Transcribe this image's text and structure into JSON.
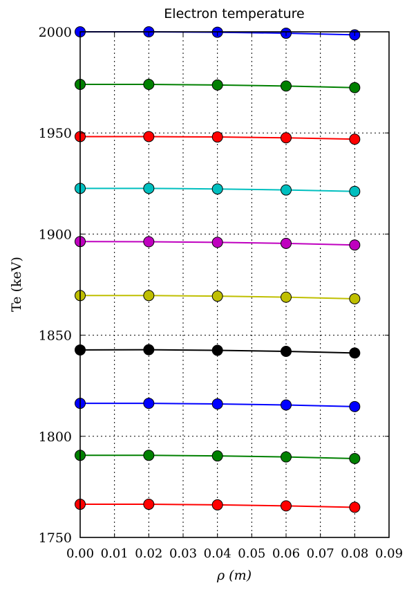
{
  "chart_data": {
    "type": "line",
    "title": "Electron temperature",
    "xlabel": "ρ (m)",
    "ylabel": "Te (keV)",
    "xlim": [
      0.0,
      0.09
    ],
    "ylim": [
      1750,
      2000
    ],
    "grid": true,
    "x_ticks": [
      "0.00",
      "0.01",
      "0.02",
      "0.03",
      "0.04",
      "0.05",
      "0.06",
      "0.07",
      "0.08",
      "0.09"
    ],
    "y_ticks": [
      "1750",
      "1800",
      "1850",
      "1900",
      "1950",
      "2000"
    ],
    "x": [
      0.0,
      0.02,
      0.04,
      0.06,
      0.08
    ],
    "series": [
      {
        "color": "#0000ff",
        "values": [
          2000.0,
          2000.0,
          1999.8,
          1999.3,
          1998.5
        ]
      },
      {
        "color": "#008000",
        "values": [
          1974.0,
          1974.0,
          1973.7,
          1973.2,
          1972.4
        ]
      },
      {
        "color": "#ff0000",
        "values": [
          1948.2,
          1948.2,
          1948.0,
          1947.6,
          1946.9
        ]
      },
      {
        "color": "#00bfbf",
        "values": [
          1922.6,
          1922.6,
          1922.3,
          1921.8,
          1921.1
        ]
      },
      {
        "color": "#bf00bf",
        "values": [
          1896.3,
          1896.2,
          1895.9,
          1895.4,
          1894.6
        ]
      },
      {
        "color": "#bfbf00",
        "values": [
          1869.6,
          1869.6,
          1869.3,
          1868.8,
          1868.0
        ]
      },
      {
        "color": "#000000",
        "values": [
          1842.7,
          1842.8,
          1842.5,
          1842.0,
          1841.2
        ]
      },
      {
        "color": "#0000ff",
        "values": [
          1816.3,
          1816.3,
          1816.0,
          1815.5,
          1814.7
        ]
      },
      {
        "color": "#008000",
        "values": [
          1790.6,
          1790.6,
          1790.3,
          1789.8,
          1789.0
        ]
      },
      {
        "color": "#ff0000",
        "values": [
          1766.4,
          1766.4,
          1766.1,
          1765.6,
          1764.9
        ]
      }
    ]
  }
}
